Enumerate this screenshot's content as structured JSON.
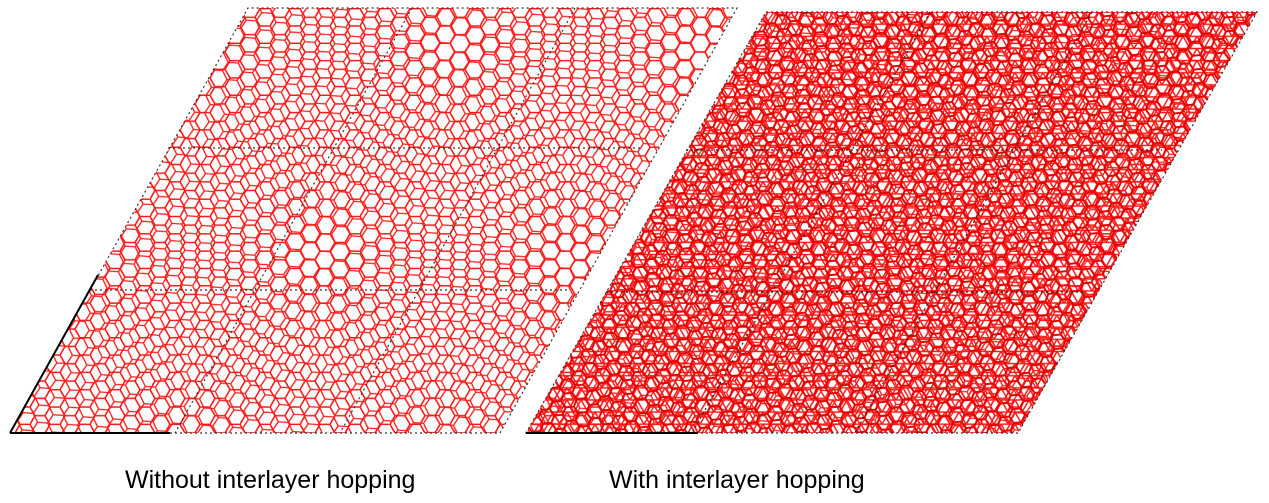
{
  "panels": [
    {
      "caption": "Without interlayer hopping",
      "lattice": "honeycomb",
      "interlayer_hopping": false
    },
    {
      "caption": "With interlayer hopping",
      "lattice": "honeycomb",
      "interlayer_hopping": true
    }
  ],
  "colors": {
    "bond": "#ff1a1a",
    "cell_border": "#000000",
    "background": "#ffffff"
  }
}
